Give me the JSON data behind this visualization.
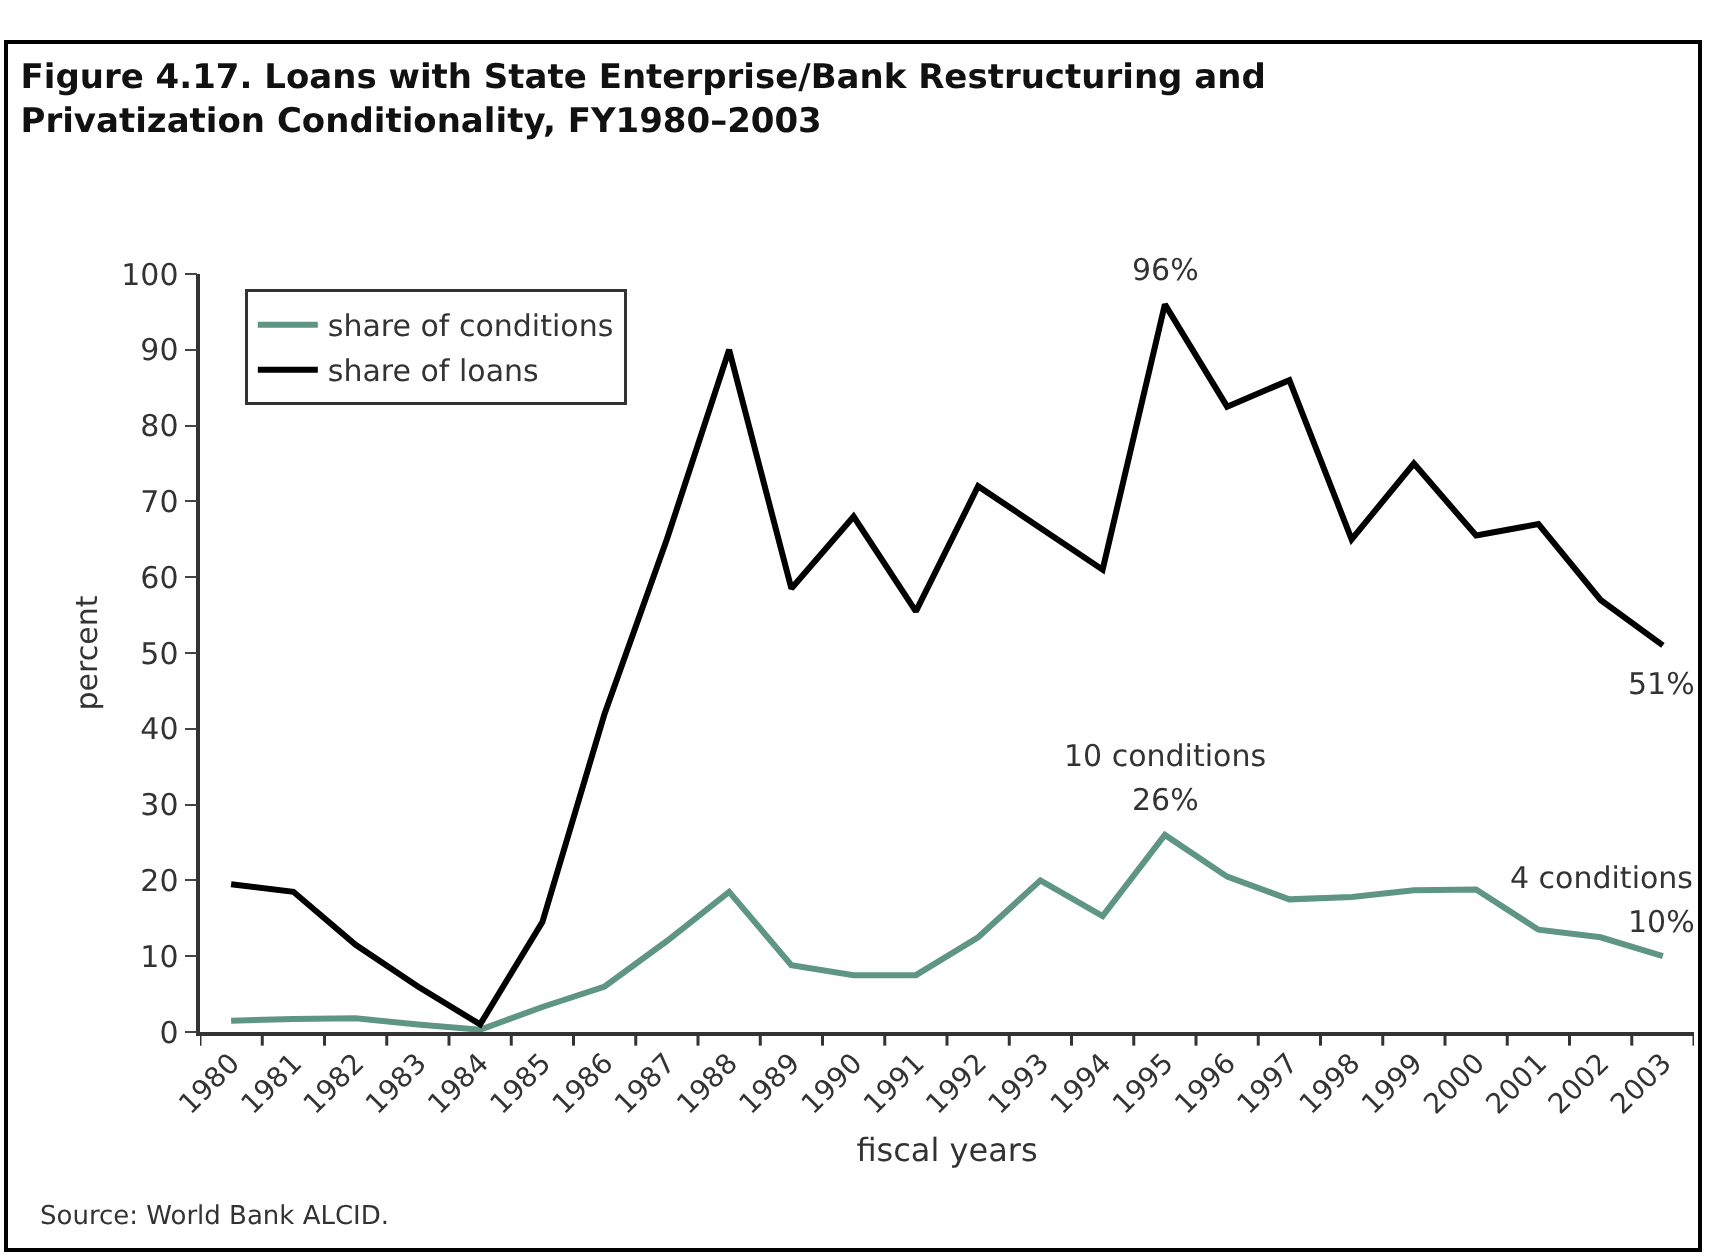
{
  "chart_data": {
    "type": "line",
    "title": "Figure 4.17. Loans with State Enterprise/Bank Restructuring and Privatization Conditionality, FY1980–2003",
    "xlabel": "fiscal years",
    "ylabel": "percent",
    "categories": [
      "1980",
      "1981",
      "1982",
      "1983",
      "1984",
      "1985",
      "1986",
      "1987",
      "1988",
      "1989",
      "1990",
      "1991",
      "1992",
      "1993",
      "1994",
      "1995",
      "1996",
      "1997",
      "1998",
      "1999",
      "2000",
      "2001",
      "2002",
      "2003"
    ],
    "series": [
      {
        "name": "share of conditions",
        "color": "#5f9585",
        "values": [
          1.5,
          1.7,
          1.8,
          1,
          0.3,
          3.3,
          6,
          12,
          18.5,
          8.8,
          7.5,
          7.5,
          12.5,
          20,
          15.3,
          26,
          20.5,
          17.5,
          17.8,
          18.7,
          18.8,
          13.5,
          12.5,
          10
        ]
      },
      {
        "name": "share of loans",
        "color": "#000000",
        "values": [
          19.5,
          18.5,
          11.5,
          6,
          1,
          14.5,
          42,
          65,
          90,
          58.5,
          68,
          55.5,
          72,
          66.5,
          61,
          96,
          82.5,
          86,
          65,
          75,
          65.5,
          67,
          57,
          51
        ]
      }
    ],
    "ylim": [
      0,
      100
    ],
    "yticks": [
      0,
      10,
      20,
      30,
      40,
      50,
      60,
      70,
      80,
      90,
      100
    ],
    "grid": false,
    "legend": "top left",
    "marker": "none",
    "line_style": "solid",
    "annotations": [
      {
        "text": "96%",
        "x": "1995",
        "y": 96
      },
      {
        "text": "51%",
        "x": "2003",
        "y": 51
      },
      {
        "text": "10 conditions",
        "x": "1995",
        "y": 26
      },
      {
        "text": "26%",
        "x": "1995",
        "y": 26
      },
      {
        "text": "4 conditions",
        "x": "2003",
        "y": 10
      },
      {
        "text": "10%",
        "x": "2003",
        "y": 10
      },
      "Source: World Bank ALCID."
    ]
  }
}
